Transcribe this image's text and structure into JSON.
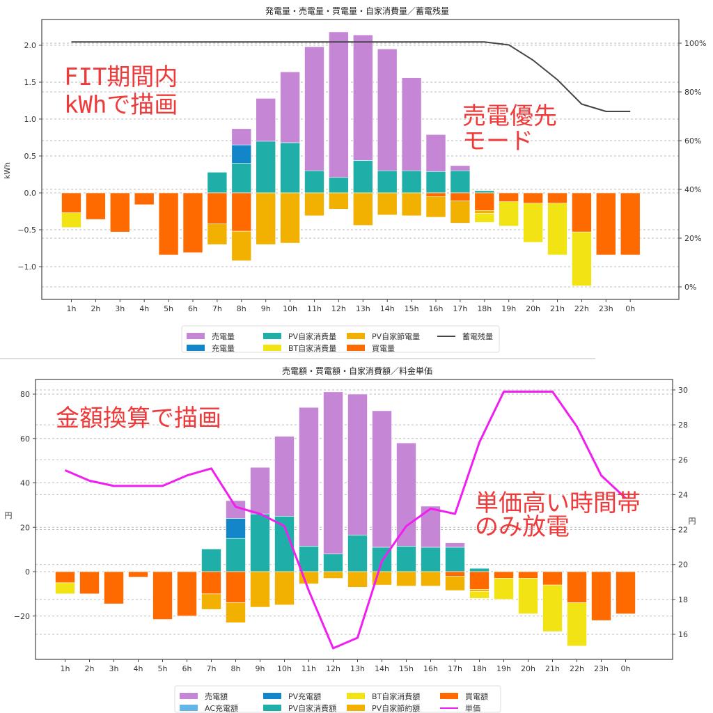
{
  "chart_data": [
    {
      "type": "bar",
      "title": "発電量・売電量・買電量・自家消費量／蓄電残量",
      "xlabel": "",
      "ylabel": "kWh",
      "ylabel_right": "",
      "ylim": [
        -1.4,
        2.3
      ],
      "yticks": [
        "2.0",
        "1.5",
        "1.0",
        "0.5",
        "0.0",
        "−0.5",
        "−1.0"
      ],
      "ytick_values": [
        2.0,
        1.5,
        1.0,
        0.5,
        0.0,
        -0.5,
        -1.0
      ],
      "y2lim": [
        -5,
        110
      ],
      "y2ticks": [
        "100%",
        "80%",
        "60%",
        "40%",
        "20%",
        "0%"
      ],
      "y2tick_values": [
        100,
        80,
        60,
        40,
        20,
        0
      ],
      "grid": true,
      "legend_position": "bottom-center",
      "categories": [
        "1h",
        "2h",
        "3h",
        "4h",
        "5h",
        "6h",
        "7h",
        "8h",
        "9h",
        "10h",
        "11h",
        "12h",
        "13h",
        "14h",
        "15h",
        "16h",
        "17h",
        "18h",
        "19h",
        "20h",
        "21h",
        "22h",
        "23h",
        "0h"
      ],
      "positive_stack": [
        {
          "name": "PV自家消費量",
          "color": "#20aea9",
          "values": [
            0,
            0,
            0,
            0,
            0,
            0,
            0.28,
            0.4,
            0.7,
            0.68,
            0.3,
            0.21,
            0.44,
            0.3,
            0.3,
            0.29,
            0.3,
            0.03,
            0,
            0,
            0,
            0,
            0,
            0
          ]
        },
        {
          "name": "充電量",
          "color": "#1286c8",
          "values": [
            0,
            0,
            0,
            0,
            0,
            0,
            0,
            0.25,
            0,
            0,
            0,
            0,
            0,
            0,
            0,
            0,
            0,
            0,
            0,
            0,
            0,
            0,
            0,
            0
          ]
        },
        {
          "name": "売電量",
          "color": "#c586d6",
          "values": [
            0,
            0,
            0,
            0,
            0,
            0,
            0,
            0.22,
            0.58,
            0.96,
            1.68,
            1.97,
            1.7,
            1.65,
            1.26,
            0.5,
            0.07,
            0,
            0,
            0,
            0,
            0,
            0,
            0
          ]
        }
      ],
      "negative_stack": [
        {
          "name": "買電量",
          "color": "#ff6a00",
          "values": [
            -0.27,
            -0.36,
            -0.53,
            -0.16,
            -0.84,
            -0.81,
            -0.42,
            -0.52,
            0,
            0,
            0,
            0,
            0,
            0,
            0,
            -0.05,
            -0.11,
            -0.24,
            -0.12,
            -0.14,
            -0.14,
            -0.53,
            -0.84,
            -0.84
          ]
        },
        {
          "name": "PV自家節電量",
          "color": "#f2b000",
          "values": [
            0,
            0,
            0,
            0,
            0,
            0,
            -0.28,
            -0.4,
            -0.7,
            -0.68,
            -0.31,
            -0.22,
            -0.44,
            -0.3,
            -0.31,
            -0.28,
            -0.3,
            -0.04,
            0,
            0,
            0,
            0,
            0,
            0
          ]
        },
        {
          "name": "BT自家消費量",
          "color": "#f2e414",
          "values": [
            -0.2,
            0,
            0,
            0,
            0,
            0,
            0,
            0,
            0,
            0,
            0,
            0,
            0,
            0,
            0,
            0,
            0,
            -0.12,
            -0.33,
            -0.53,
            -0.7,
            -0.73,
            0,
            0
          ]
        }
      ],
      "line": {
        "name": "蓄電残量",
        "color": "#444444",
        "axis": "right",
        "values": [
          100.5,
          100.5,
          100.5,
          100.5,
          100.5,
          100.5,
          100.5,
          100.5,
          100.5,
          100.5,
          100.5,
          100.5,
          100.5,
          100.5,
          100.5,
          100.5,
          100.5,
          100.5,
          99.3,
          93,
          85,
          75,
          72,
          72
        ]
      },
      "legend": [
        {
          "label": "売電量",
          "color": "#c586d6",
          "kind": "patch"
        },
        {
          "label": "充電量",
          "color": "#1286c8",
          "kind": "patch"
        },
        {
          "label": "PV自家消費量",
          "color": "#20aea9",
          "kind": "patch"
        },
        {
          "label": "BT自家消費量",
          "color": "#f2e414",
          "kind": "patch"
        },
        {
          "label": "PV自家節電量",
          "color": "#f2b000",
          "kind": "patch"
        },
        {
          "label": "買電量",
          "color": "#ff6a00",
          "kind": "patch"
        },
        {
          "label": "蓄電残量",
          "color": "#444444",
          "kind": "line"
        }
      ],
      "annotations": [
        {
          "text": "FIT期間内",
          "position": "top-left"
        },
        {
          "text": "kWhで描画",
          "position": "top-left"
        },
        {
          "text": "売電優先",
          "position": "upper-right"
        },
        {
          "text": "モード",
          "position": "upper-right"
        }
      ]
    },
    {
      "type": "bar",
      "title": "売電額・買電額・自家消費額／料金単価",
      "xlabel": "",
      "ylabel": "円",
      "ylabel_right": "円",
      "ylim": [
        -39,
        85
      ],
      "yticks": [
        "80",
        "60",
        "40",
        "20",
        "0",
        "−20"
      ],
      "ytick_values": [
        80,
        60,
        40,
        20,
        0,
        -20
      ],
      "y2lim": [
        14.6,
        30.6
      ],
      "y2ticks": [
        "30",
        "28",
        "26",
        "24",
        "22",
        "20",
        "18",
        "16"
      ],
      "y2tick_values": [
        30,
        28,
        26,
        24,
        22,
        20,
        18,
        16
      ],
      "grid": true,
      "legend_position": "bottom-center",
      "categories": [
        "1h",
        "2h",
        "3h",
        "4h",
        "5h",
        "6h",
        "7h",
        "8h",
        "9h",
        "10h",
        "11h",
        "12h",
        "13h",
        "14h",
        "15h",
        "16h",
        "17h",
        "18h",
        "19h",
        "20h",
        "21h",
        "22h",
        "23h",
        "0h"
      ],
      "positive_stack": [
        {
          "name": "PV自家消費額",
          "color": "#20aea9",
          "values": [
            0,
            0,
            0,
            0,
            0,
            0,
            10.2,
            15,
            26,
            25,
            11.5,
            8,
            16.5,
            11,
            11.5,
            11,
            11,
            1.5,
            0,
            0,
            0,
            0,
            0,
            0
          ]
        },
        {
          "name": "AC充電額",
          "color": "#62b6e8",
          "values": [
            0,
            0,
            0,
            0,
            0,
            0,
            0,
            0,
            0,
            0,
            0,
            0,
            0,
            0,
            0,
            0,
            0,
            0,
            0,
            0,
            0,
            0,
            0,
            0
          ]
        },
        {
          "name": "PV充電額",
          "color": "#1286c8",
          "values": [
            0,
            0,
            0,
            0,
            0,
            0,
            0,
            9,
            0,
            0,
            0,
            0,
            0,
            0,
            0,
            0,
            0,
            0,
            0,
            0,
            0,
            0,
            0,
            0
          ]
        },
        {
          "name": "売電額",
          "color": "#c586d6",
          "values": [
            0,
            0,
            0,
            0,
            0,
            0,
            0,
            8,
            21,
            36,
            62.5,
            73,
            63.5,
            61.5,
            46.5,
            18.5,
            2,
            0,
            0,
            0,
            0,
            0,
            0,
            0
          ]
        }
      ],
      "negative_stack": [
        {
          "name": "買電額",
          "color": "#ff6a00",
          "values": [
            -5,
            -10,
            -14.5,
            -2.5,
            -21.5,
            -20,
            -10,
            -14,
            0,
            0,
            0,
            0,
            0,
            0,
            0,
            0,
            -2,
            -8,
            -3,
            -3,
            -6,
            -14,
            -22,
            -19
          ]
        },
        {
          "name": "PV自家節約額",
          "color": "#f2b000",
          "values": [
            0,
            0,
            0,
            0,
            0,
            0,
            -7,
            -9,
            -16,
            -15,
            -5.5,
            -3,
            -7,
            -6,
            -6.5,
            -6.5,
            -6.5,
            -1,
            0,
            0,
            0,
            0,
            0,
            0
          ]
        },
        {
          "name": "BT自家消費額",
          "color": "#f2e414",
          "values": [
            -5,
            0,
            0,
            0,
            0,
            0,
            0,
            0,
            0,
            0,
            0,
            0,
            0,
            0,
            0,
            0,
            0,
            -3,
            -9.5,
            -16,
            -21,
            -19.5,
            0,
            0
          ]
        }
      ],
      "line": {
        "name": "単価",
        "color": "#f01ef0",
        "axis": "right",
        "values": [
          25.4,
          24.8,
          24.5,
          24.5,
          24.5,
          25.1,
          25.5,
          23.3,
          22.9,
          22.2,
          18.5,
          15.2,
          15.8,
          20.2,
          22.2,
          23.2,
          22.9,
          27.0,
          29.9,
          29.9,
          29.9,
          27.9,
          25.1,
          23.8
        ]
      },
      "legend": [
        {
          "label": "売電額",
          "color": "#c586d6",
          "kind": "patch"
        },
        {
          "label": "AC充電額",
          "color": "#62b6e8",
          "kind": "patch"
        },
        {
          "label": "PV充電額",
          "color": "#1286c8",
          "kind": "patch"
        },
        {
          "label": "PV自家消費額",
          "color": "#20aea9",
          "kind": "patch"
        },
        {
          "label": "BT自家消費額",
          "color": "#f2e414",
          "kind": "patch"
        },
        {
          "label": "PV自家節約額",
          "color": "#f2b000",
          "kind": "patch"
        },
        {
          "label": "買電額",
          "color": "#ff6a00",
          "kind": "patch"
        },
        {
          "label": "単価",
          "color": "#f01ef0",
          "kind": "line"
        }
      ],
      "annotations": [
        {
          "text": "金額換算で描画",
          "position": "top-left"
        },
        {
          "text": "単価高い時間帯",
          "position": "right-middle"
        },
        {
          "text": "のみ放電",
          "position": "right-middle"
        }
      ]
    }
  ]
}
